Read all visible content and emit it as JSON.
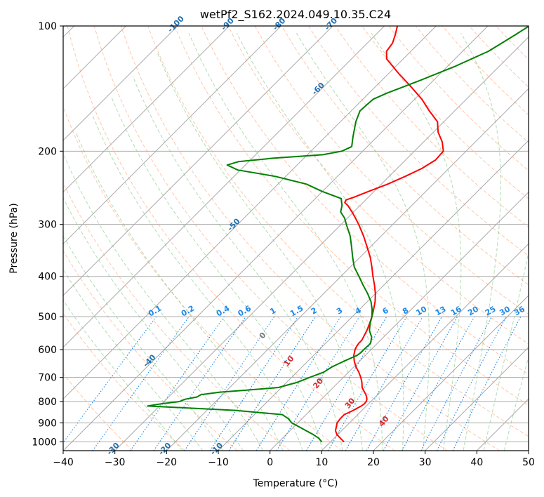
{
  "chart_data": {
    "type": "line",
    "title": "wetPf2_S162.2024.049.10.35.C24",
    "xlabel": "Temperature (°C)",
    "ylabel": "Pressure (hPa)",
    "xlim": [
      -40,
      50
    ],
    "ylim": [
      1050,
      100
    ],
    "y_scale": "log",
    "x_ticks": [
      -40,
      -30,
      -20,
      -10,
      0,
      10,
      20,
      30,
      40,
      50
    ],
    "y_ticks": [
      100,
      200,
      300,
      400,
      500,
      600,
      700,
      800,
      900,
      1000
    ],
    "grid": true,
    "skew": "skew-T log-P, isotherms skewed at 45 degrees",
    "colors": {
      "temperature": "#ff0000",
      "dewpoint": "#008000",
      "isotherm_grid": "#aaaaaa",
      "dry_adiabat": "#ff9966",
      "moist_adiabat": "#66bb66",
      "mixing_ratio": "#1e88e5",
      "isotherm_label": "#1f6fb0",
      "moist_label": "#d62728"
    },
    "series": [
      {
        "key": "temperature",
        "points": [
          [
            1000,
            12.6
          ],
          [
            980,
            11.2
          ],
          [
            960,
            9.8
          ],
          [
            940,
            8.8
          ],
          [
            920,
            8.2
          ],
          [
            900,
            7.6
          ],
          [
            880,
            7.4
          ],
          [
            860,
            7.4
          ],
          [
            840,
            8.3
          ],
          [
            820,
            9.0
          ],
          [
            810,
            9.2
          ],
          [
            800,
            9.1
          ],
          [
            790,
            8.8
          ],
          [
            780,
            8.3
          ],
          [
            770,
            7.7
          ],
          [
            760,
            7.0
          ],
          [
            740,
            5.6
          ],
          [
            720,
            4.6
          ],
          [
            700,
            3.4
          ],
          [
            680,
            2.0
          ],
          [
            660,
            0.4
          ],
          [
            640,
            -1.0
          ],
          [
            620,
            -2.2
          ],
          [
            600,
            -3.1
          ],
          [
            590,
            -3.4
          ],
          [
            580,
            -3.6
          ],
          [
            570,
            -3.6
          ],
          [
            560,
            -3.9
          ],
          [
            540,
            -4.5
          ],
          [
            520,
            -5.3
          ],
          [
            500,
            -6.2
          ],
          [
            480,
            -7.3
          ],
          [
            460,
            -8.5
          ],
          [
            440,
            -10.0
          ],
          [
            420,
            -11.8
          ],
          [
            400,
            -13.8
          ],
          [
            380,
            -15.8
          ],
          [
            360,
            -18.0
          ],
          [
            340,
            -20.6
          ],
          [
            320,
            -23.4
          ],
          [
            300,
            -26.6
          ],
          [
            290,
            -28.4
          ],
          [
            280,
            -30.3
          ],
          [
            270,
            -32.4
          ],
          [
            266,
            -33.5
          ],
          [
            262,
            -33.8
          ],
          [
            258,
            -32.8
          ],
          [
            250,
            -31.1
          ],
          [
            240,
            -28.8
          ],
          [
            230,
            -26.9
          ],
          [
            220,
            -25.2
          ],
          [
            210,
            -24.2
          ],
          [
            200,
            -24.4
          ],
          [
            190,
            -26.4
          ],
          [
            180,
            -29.1
          ],
          [
            170,
            -31.2
          ],
          [
            160,
            -34.9
          ],
          [
            150,
            -38.6
          ],
          [
            140,
            -43.1
          ],
          [
            130,
            -48.1
          ],
          [
            120,
            -53.2
          ],
          [
            115,
            -54.7
          ],
          [
            110,
            -55.1
          ],
          [
            105,
            -56.2
          ],
          [
            100,
            -57.5
          ]
        ]
      },
      {
        "key": "dewpoint",
        "points": [
          [
            1000,
            8.3
          ],
          [
            980,
            7.0
          ],
          [
            960,
            5.2
          ],
          [
            940,
            3.1
          ],
          [
            920,
            1.0
          ],
          [
            900,
            -1.2
          ],
          [
            880,
            -2.6
          ],
          [
            860,
            -4.6
          ],
          [
            850,
            -9.6
          ],
          [
            840,
            -14.5
          ],
          [
            830,
            -23.3
          ],
          [
            820,
            -32.3
          ],
          [
            810,
            -30.1
          ],
          [
            800,
            -27.0
          ],
          [
            790,
            -26.4
          ],
          [
            780,
            -24.5
          ],
          [
            770,
            -24.2
          ],
          [
            760,
            -21.1
          ],
          [
            750,
            -15.6
          ],
          [
            740,
            -10.6
          ],
          [
            720,
            -8.0
          ],
          [
            700,
            -6.5
          ],
          [
            680,
            -4.8
          ],
          [
            660,
            -4.2
          ],
          [
            640,
            -3.0
          ],
          [
            620,
            -1.6
          ],
          [
            610,
            -1.4
          ],
          [
            600,
            -1.4
          ],
          [
            580,
            -1.3
          ],
          [
            560,
            -2.3
          ],
          [
            540,
            -4.0
          ],
          [
            520,
            -5.2
          ],
          [
            500,
            -6.2
          ],
          [
            480,
            -7.6
          ],
          [
            460,
            -9.3
          ],
          [
            440,
            -11.5
          ],
          [
            420,
            -14.0
          ],
          [
            400,
            -16.5
          ],
          [
            380,
            -19.2
          ],
          [
            360,
            -21.4
          ],
          [
            340,
            -23.6
          ],
          [
            320,
            -26.0
          ],
          [
            300,
            -29.0
          ],
          [
            290,
            -30.5
          ],
          [
            280,
            -32.5
          ],
          [
            270,
            -33.5
          ],
          [
            260,
            -35.0
          ],
          [
            250,
            -40.0
          ],
          [
            240,
            -44.5
          ],
          [
            230,
            -52.0
          ],
          [
            222,
            -60.5
          ],
          [
            216,
            -63.5
          ],
          [
            212,
            -62.0
          ],
          [
            208,
            -56.0
          ],
          [
            204,
            -47.0
          ],
          [
            200,
            -44.0
          ],
          [
            195,
            -43.0
          ],
          [
            185,
            -44.6
          ],
          [
            170,
            -47.0
          ],
          [
            160,
            -48.3
          ],
          [
            150,
            -48.0
          ],
          [
            145,
            -46.5
          ],
          [
            135,
            -42.5
          ],
          [
            125,
            -38.5
          ],
          [
            115,
            -35.0
          ],
          [
            110,
            -34.0
          ],
          [
            105,
            -33.0
          ],
          [
            100,
            -32.0
          ]
        ]
      }
    ],
    "isotherm_labels": [
      "-100",
      "-90",
      "-80",
      "-70",
      "-60",
      "-50",
      "-40",
      "-30",
      "-20",
      "-10"
    ],
    "isotherm_label_values": [
      -100,
      -90,
      -80,
      -70,
      -60,
      -50,
      -40,
      -30,
      -20,
      -10
    ],
    "mixing_ratio_labels": [
      "0.1",
      "0.2",
      "0.4",
      "0.6",
      "1",
      "1.5",
      "2",
      "3",
      "4",
      "6",
      "8",
      "10",
      "13",
      "16",
      "20",
      "25",
      "30",
      "36"
    ],
    "mixing_ratio_values": [
      0.1,
      0.2,
      0.4,
      0.6,
      1,
      1.5,
      2,
      3,
      4,
      6,
      8,
      10,
      13,
      16,
      20,
      25,
      30,
      36
    ],
    "moist_adiabat_labels": [
      "0",
      "10",
      "20",
      "30",
      "40"
    ],
    "moist_adiabat_values": [
      0,
      10,
      20,
      30,
      40
    ]
  }
}
